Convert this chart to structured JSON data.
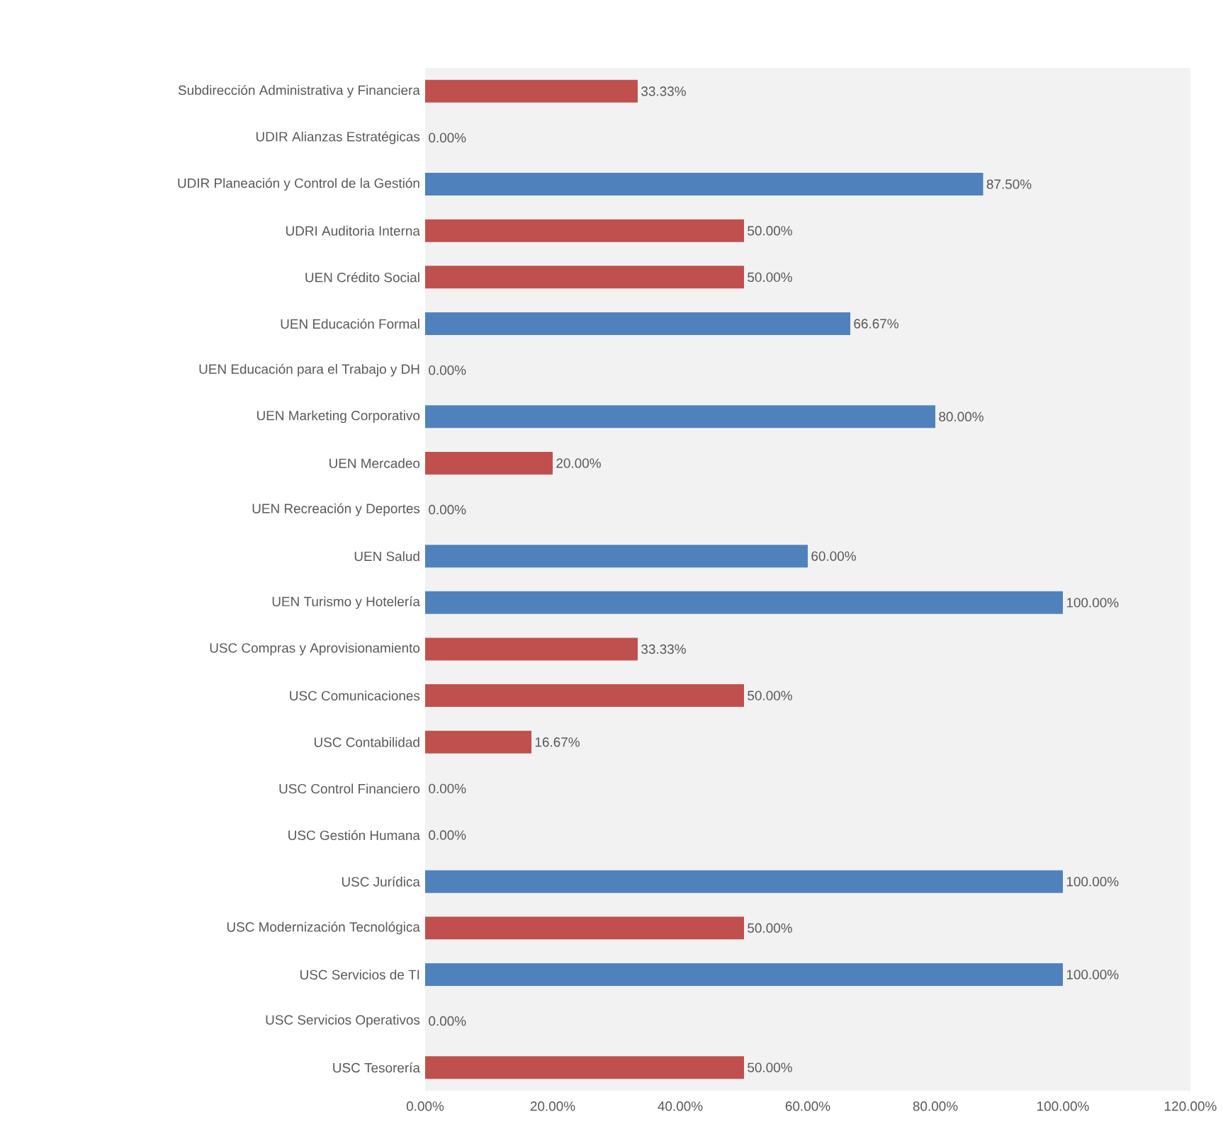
{
  "chart_data": {
    "type": "bar",
    "orientation": "horizontal",
    "categories": [
      "Subdirección Administrativa y Financiera",
      "UDIR Alianzas Estratégicas",
      "UDIR Planeación y Control de la Gestión",
      "UDRI Auditoria Interna",
      "UEN Crédito Social",
      "UEN Educación Formal",
      "UEN Educación para el Trabajo y DH",
      "UEN Marketing Corporativo",
      "UEN Mercadeo",
      "UEN Recreación y Deportes",
      "UEN Salud",
      "UEN Turismo y Hotelería",
      "USC Compras y Aprovisionamiento",
      "USC Comunicaciones",
      "USC Contabilidad",
      "USC Control Financiero",
      "USC Gestión Humana",
      "USC Jurídica",
      "USC Modernización Tecnológica",
      "USC Servicios de TI",
      "USC Servicios Operativos",
      "USC Tesorería"
    ],
    "values": [
      33.33,
      0,
      87.5,
      50,
      50,
      66.67,
      0,
      80,
      20,
      0,
      60,
      100,
      33.33,
      50,
      16.67,
      0,
      0,
      100,
      50,
      100,
      0,
      50
    ],
    "value_labels": [
      "33.33%",
      "0.00%",
      "87.50%",
      "50.00%",
      "50.00%",
      "66.67%",
      "0.00%",
      "80.00%",
      "20.00%",
      "0.00%",
      "60.00%",
      "100.00%",
      "33.33%",
      "50.00%",
      "16.67%",
      "0.00%",
      "0.00%",
      "100.00%",
      "50.00%",
      "100.00%",
      "0.00%",
      "50.00%"
    ],
    "colors": [
      "#c0504d",
      "#c0504d",
      "#4f81bd",
      "#c0504d",
      "#c0504d",
      "#4f81bd",
      "#c0504d",
      "#4f81bd",
      "#c0504d",
      "#c0504d",
      "#4f81bd",
      "#4f81bd",
      "#c0504d",
      "#c0504d",
      "#c0504d",
      "#c0504d",
      "#c0504d",
      "#4f81bd",
      "#c0504d",
      "#4f81bd",
      "#c0504d",
      "#c0504d"
    ],
    "xlim": [
      0,
      120
    ],
    "xticks": [
      {
        "value": 0,
        "label": "0.00%"
      },
      {
        "value": 20,
        "label": "20.00%"
      },
      {
        "value": 40,
        "label": "40.00%"
      },
      {
        "value": 60,
        "label": "60.00%"
      },
      {
        "value": 80,
        "label": "80.00%"
      },
      {
        "value": 100,
        "label": "100.00%"
      },
      {
        "value": 120,
        "label": "120.00%"
      }
    ],
    "grid": false
  }
}
